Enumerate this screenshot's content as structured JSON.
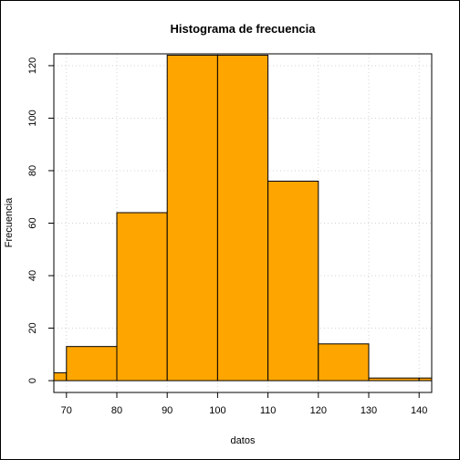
{
  "chart_data": {
    "type": "bar",
    "title": "Histograma de frecuencia",
    "xlabel": "datos",
    "ylabel": "Frecuencia",
    "bins": [
      {
        "from": 60,
        "to": 70,
        "count": 3
      },
      {
        "from": 70,
        "to": 80,
        "count": 13
      },
      {
        "from": 80,
        "to": 90,
        "count": 64
      },
      {
        "from": 90,
        "to": 100,
        "count": 124
      },
      {
        "from": 100,
        "to": 110,
        "count": 124
      },
      {
        "from": 110,
        "to": 120,
        "count": 76
      },
      {
        "from": 120,
        "to": 130,
        "count": 14
      },
      {
        "from": 130,
        "to": 140,
        "count": 1
      },
      {
        "from": 140,
        "to": 150,
        "count": 1
      }
    ],
    "xlim": [
      67.5,
      142.5
    ],
    "ylim": [
      -4.5,
      124.5
    ],
    "xticks": [
      70,
      80,
      90,
      100,
      110,
      120,
      130,
      140
    ],
    "yticks": [
      0,
      20,
      40,
      60,
      80,
      100,
      120
    ],
    "grid": true,
    "bar_fill": "#FFA500",
    "bar_stroke": "#000000",
    "grid_color": "#d3d3d3"
  }
}
